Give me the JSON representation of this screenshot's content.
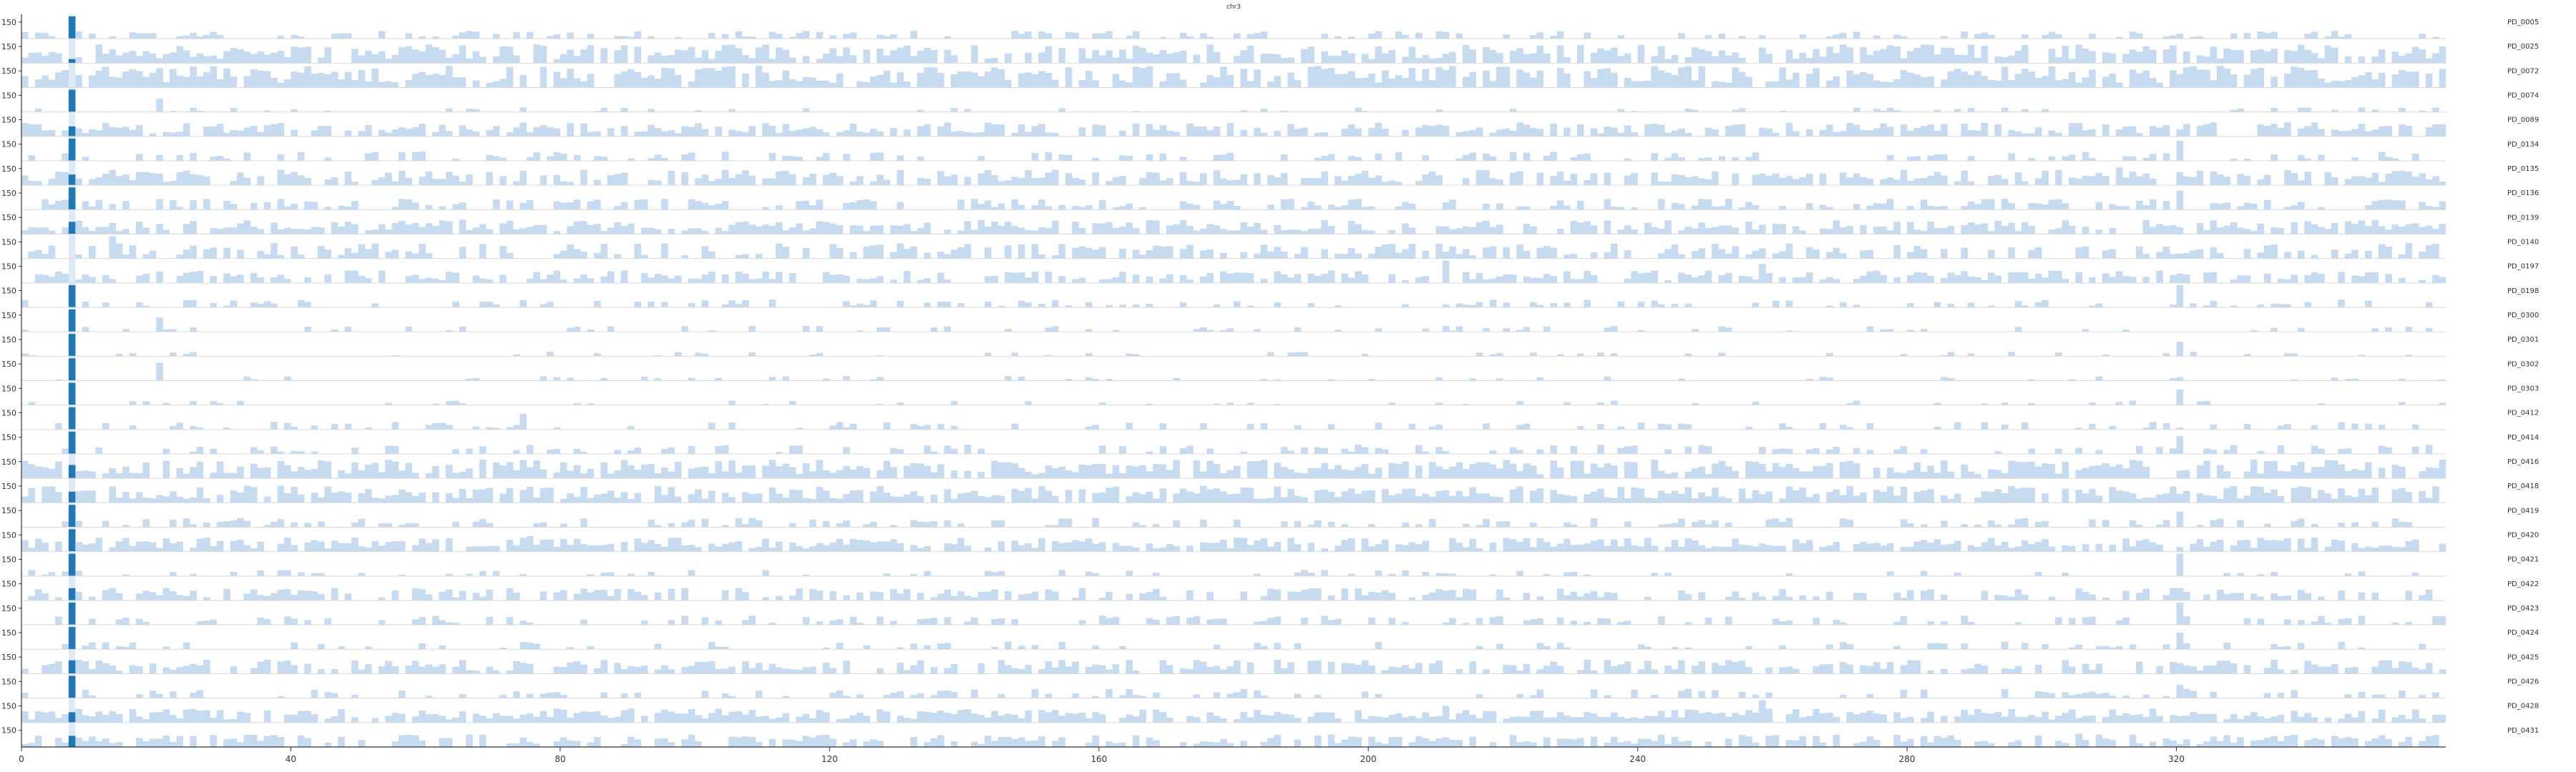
{
  "chart_data": {
    "type": "bar",
    "title": "chr3",
    "x": {
      "ticks": [
        0,
        40,
        80,
        120,
        160,
        200,
        240,
        280,
        320
      ],
      "lim": [
        0,
        360
      ]
    },
    "y": {
      "tick_label": "150",
      "lim": [
        0,
        200
      ]
    },
    "highlight": {
      "x_start": 7,
      "x_end": 8,
      "color": "#1f77b4"
    },
    "colors": {
      "bar": "#c6dbef",
      "highlight_bar": "#1f77b4",
      "axis": "#333333",
      "separator": "#d9d9d9"
    },
    "series": [
      {
        "name": "PD_0005",
        "spikes": [
          [
            7,
            200
          ]
        ],
        "density": 0.4,
        "level": 0.25
      },
      {
        "name": "PD_0025",
        "spikes": [
          [
            64,
            80
          ]
        ],
        "density": 0.8,
        "level": 0.6
      },
      {
        "name": "PD_0072",
        "spikes": [
          [
            306,
            90
          ]
        ],
        "density": 0.85,
        "level": 0.7
      },
      {
        "name": "PD_0074",
        "spikes": [
          [
            7,
            200
          ],
          [
            20,
            120
          ]
        ],
        "density": 0.15,
        "level": 0.15
      },
      {
        "name": "PD_0089",
        "spikes": [
          [
            7,
            90
          ],
          [
            305,
            120
          ]
        ],
        "density": 0.7,
        "level": 0.45
      },
      {
        "name": "PD_0134",
        "spikes": [
          [
            7,
            200
          ],
          [
            320,
            180
          ]
        ],
        "density": 0.35,
        "level": 0.3
      },
      {
        "name": "PD_0135",
        "spikes": [
          [
            311,
            160
          ],
          [
            320,
            120
          ]
        ],
        "density": 0.75,
        "level": 0.5
      },
      {
        "name": "PD_0136",
        "spikes": [
          [
            7,
            200
          ],
          [
            320,
            170
          ]
        ],
        "density": 0.55,
        "level": 0.35
      },
      {
        "name": "PD_0139",
        "spikes": [
          [
            65,
            130
          ],
          [
            230,
            120
          ]
        ],
        "density": 0.8,
        "level": 0.45
      },
      {
        "name": "PD_0140",
        "spikes": [
          [
            13,
            200
          ],
          [
            350,
            130
          ]
        ],
        "density": 0.6,
        "level": 0.5
      },
      {
        "name": "PD_0197",
        "spikes": [
          [
            211,
            200
          ],
          [
            258,
            170
          ]
        ],
        "density": 0.65,
        "level": 0.4
      },
      {
        "name": "PD_0198",
        "spikes": [
          [
            7,
            200
          ],
          [
            320,
            200
          ]
        ],
        "density": 0.3,
        "level": 0.25
      },
      {
        "name": "PD_0300",
        "spikes": [
          [
            7,
            200
          ],
          [
            20,
            130
          ]
        ],
        "density": 0.2,
        "level": 0.2
      },
      {
        "name": "PD_0301",
        "spikes": [
          [
            7,
            200
          ],
          [
            320,
            130
          ]
        ],
        "density": 0.15,
        "level": 0.15
      },
      {
        "name": "PD_0302",
        "spikes": [
          [
            7,
            200
          ],
          [
            20,
            160
          ]
        ],
        "density": 0.15,
        "level": 0.15
      },
      {
        "name": "PD_0303",
        "spikes": [
          [
            7,
            200
          ],
          [
            320,
            140
          ]
        ],
        "density": 0.15,
        "level": 0.15
      },
      {
        "name": "PD_0412",
        "spikes": [
          [
            7,
            200
          ],
          [
            74,
            140
          ]
        ],
        "density": 0.3,
        "level": 0.25
      },
      {
        "name": "PD_0414",
        "spikes": [
          [
            7,
            200
          ],
          [
            320,
            160
          ]
        ],
        "density": 0.35,
        "level": 0.3
      },
      {
        "name": "PD_0416",
        "spikes": [
          [
            7,
            120
          ],
          [
            258,
            130
          ]
        ],
        "density": 0.85,
        "level": 0.6
      },
      {
        "name": "PD_0418",
        "spikes": [
          [
            7,
            100
          ],
          [
            215,
            140
          ]
        ],
        "density": 0.85,
        "level": 0.55
      },
      {
        "name": "PD_0419",
        "spikes": [
          [
            7,
            200
          ],
          [
            320,
            140
          ]
        ],
        "density": 0.4,
        "level": 0.3
      },
      {
        "name": "PD_0420",
        "spikes": [
          [
            7,
            200
          ],
          [
            75,
            140
          ]
        ],
        "density": 0.8,
        "level": 0.45
      },
      {
        "name": "PD_0421",
        "spikes": [
          [
            7,
            200
          ],
          [
            320,
            200
          ]
        ],
        "density": 0.2,
        "level": 0.2
      },
      {
        "name": "PD_0422",
        "spikes": [
          [
            7,
            110
          ],
          [
            320,
            110
          ]
        ],
        "density": 0.55,
        "level": 0.4
      },
      {
        "name": "PD_0423",
        "spikes": [
          [
            7,
            200
          ],
          [
            320,
            200
          ]
        ],
        "density": 0.35,
        "level": 0.3
      },
      {
        "name": "PD_0424",
        "spikes": [
          [
            7,
            200
          ],
          [
            320,
            150
          ]
        ],
        "density": 0.25,
        "level": 0.25
      },
      {
        "name": "PD_0425",
        "spikes": [
          [
            7,
            120
          ],
          [
            350,
            120
          ]
        ],
        "density": 0.7,
        "level": 0.45
      },
      {
        "name": "PD_0426",
        "spikes": [
          [
            7,
            200
          ],
          [
            320,
            120
          ]
        ],
        "density": 0.3,
        "level": 0.3
      },
      {
        "name": "PD_0428",
        "spikes": [
          [
            211,
            150
          ],
          [
            258,
            200
          ]
        ],
        "density": 0.85,
        "level": 0.45
      },
      {
        "name": "PD_0431",
        "spikes": [
          [
            7,
            100
          ],
          [
            305,
            120
          ]
        ],
        "density": 0.65,
        "level": 0.4
      }
    ]
  }
}
